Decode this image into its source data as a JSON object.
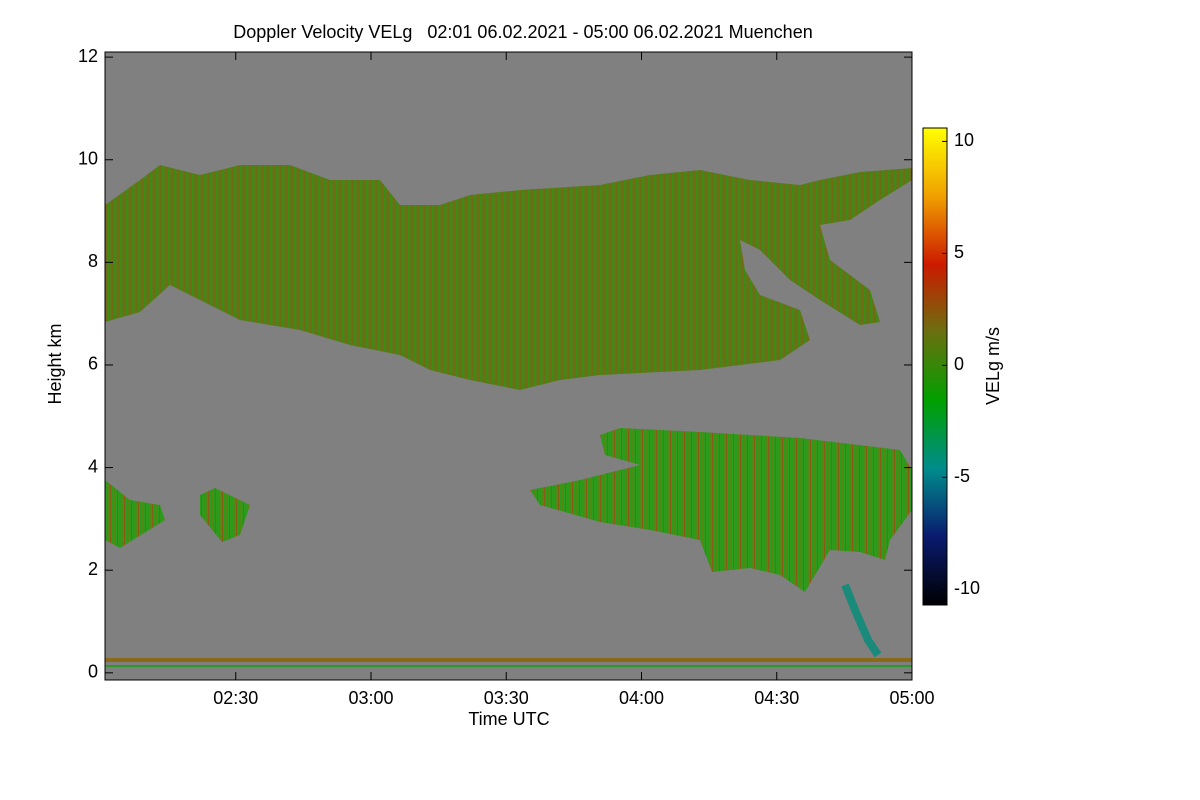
{
  "chart_data": {
    "type": "heatmap",
    "title": "Doppler Velocity VELg   02:01 06.02.2021 - 05:00 06.02.2021 Muenchen",
    "x_label": "Time UTC",
    "y_label": "Height km",
    "colorbar_label": "VELg m/s",
    "xlim": [
      121,
      300
    ],
    "xticks": [
      {
        "value": 150,
        "label": "02:30"
      },
      {
        "value": 180,
        "label": "03:00"
      },
      {
        "value": 210,
        "label": "03:30"
      },
      {
        "value": 240,
        "label": "04:00"
      },
      {
        "value": 270,
        "label": "04:30"
      },
      {
        "value": 300,
        "label": "05:00"
      }
    ],
    "ylim": [
      -0.14,
      12.1
    ],
    "yticks": [
      0,
      2,
      4,
      6,
      8,
      10,
      12
    ],
    "zlim": [
      -10.7,
      10.6
    ],
    "zticks": [
      -10,
      -5,
      0,
      5,
      10
    ],
    "colormap": [
      "#000000",
      "#0a1a6e",
      "#008c8c",
      "#00a000",
      "#6a7010",
      "#cc1a00",
      "#f0a000",
      "#ffff00"
    ],
    "background": "#808080"
  }
}
